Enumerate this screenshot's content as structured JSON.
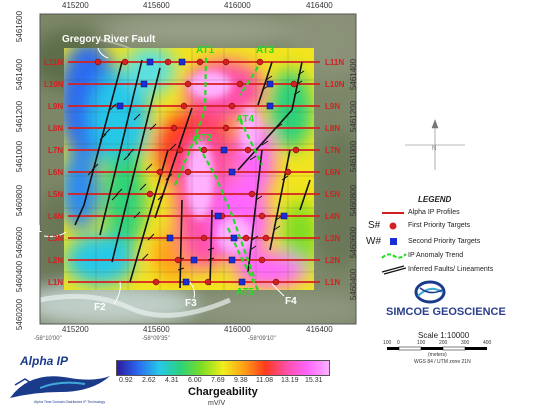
{
  "map": {
    "easting_ticks": [
      "415200",
      "415600",
      "416000",
      "416400"
    ],
    "northing_ticks": [
      "5461600",
      "5461400",
      "5461200",
      "5461000",
      "5460800",
      "5460600",
      "5460400",
      "5460200"
    ],
    "northing_ticks_repeat": [
      "5461600",
      "5461400",
      "5461200",
      "5461000",
      "5460800",
      "5460600",
      "5460400",
      "5460200"
    ],
    "northing_ticks_right": [
      "5461400",
      "5461200",
      "5461000",
      "5460800",
      "5460600",
      "5460400"
    ],
    "longitude_ticks": [
      "-58°10'00\"",
      "-58°09'35\"",
      "-58°09'10\""
    ],
    "lines_left": [
      "L11N",
      "L10N",
      "L9N",
      "L8N",
      "L7N",
      "L6N",
      "L5N",
      "L4N",
      "L3N",
      "L2N",
      "L1N"
    ],
    "lines_right": [
      "L11N",
      "L10N",
      "L9N",
      "L8N",
      "L7N",
      "L6N",
      "L5N",
      "L4N",
      "L3N",
      "L2N",
      "L1N"
    ],
    "fault_labels": [
      "F1",
      "F2",
      "F3",
      "F4"
    ],
    "trend_labels": [
      "AT1",
      "AT3",
      "AT4",
      "AT2",
      "AT5"
    ],
    "river_label": "Gregory River Fault",
    "colors": {
      "profile_red": "#d42020",
      "first_priority": "#d42020",
      "second_priority": "#1a2ed8",
      "trend_green": "#22dd22"
    }
  },
  "legend": {
    "title": "LEGEND",
    "items": [
      {
        "symbol": "",
        "label": "Alpha IP Profiles"
      },
      {
        "symbol": "S#",
        "label": "First Priority Targets"
      },
      {
        "symbol": "W#",
        "label": "Second Priority Targets"
      },
      {
        "symbol": "",
        "label": "IP Anomaly Trend"
      },
      {
        "symbol": "",
        "label": "Inferred Faults/ Lineaments"
      }
    ]
  },
  "branding": {
    "company": "SIMCOE GEOSCIENCE",
    "scale": "Scale 1:10000",
    "scale_ticks": [
      "100",
      "0",
      "100",
      "200",
      "300",
      "400"
    ],
    "scale_unit": "(meters)",
    "datum": "WGS 84 / UTM zone 21N",
    "product": "Alpha IP",
    "product_tagline": "Alpha Time Domain Distributed IP Technology"
  },
  "colorbar": {
    "ticks": [
      "0.92",
      "2.62",
      "4.31",
      "6.00",
      "7.69",
      "9.38",
      "11.08",
      "13.19",
      "15.31"
    ],
    "title": "Chargeability",
    "unit": "mV/V",
    "gradient": [
      "#2c1a9e",
      "#2a6af0",
      "#26c8e8",
      "#2bd27a",
      "#7ddd22",
      "#f0ee1c",
      "#ff9e16",
      "#ff3a1c",
      "#ff4fa8",
      "#ff66ff",
      "#ffb0ff"
    ]
  }
}
